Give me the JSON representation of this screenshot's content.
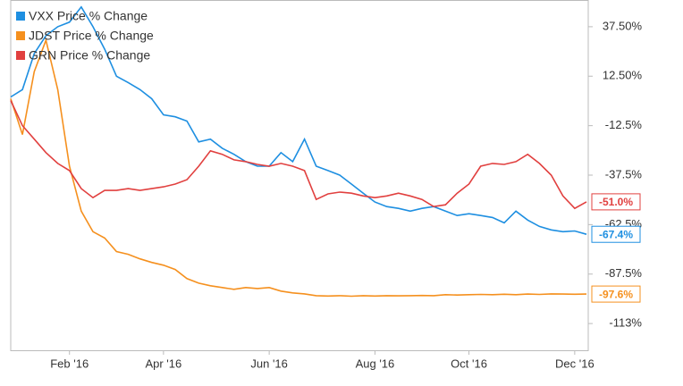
{
  "chart_data": {
    "type": "line",
    "categories": [
      null,
      null,
      null,
      null,
      null,
      "Feb '16",
      null,
      null,
      null,
      null,
      null,
      null,
      null,
      "Apr '16",
      null,
      null,
      null,
      null,
      null,
      null,
      null,
      null,
      "Jun '16",
      null,
      null,
      null,
      null,
      null,
      null,
      null,
      null,
      "Aug '16",
      null,
      null,
      null,
      null,
      null,
      null,
      null,
      "Oct '16",
      null,
      null,
      null,
      null,
      null,
      null,
      null,
      null,
      "Dec '16",
      null
    ],
    "series": [
      {
        "name": "VXX Price % Change",
        "color": "#1e8fe1",
        "values": [
          2.0,
          5.7,
          23.9,
          33,
          37.5,
          39.8,
          47.5,
          37.5,
          26.1,
          12.5,
          9.3,
          5.7,
          1.1,
          -7.0,
          -8,
          -10.2,
          -20.7,
          -19.3,
          -23.9,
          -27,
          -30.7,
          -33,
          -33,
          -26.1,
          -30.7,
          -19.3,
          -33,
          -35.2,
          -37.5,
          -42,
          -46.6,
          -51.1,
          -53.4,
          -54.3,
          -55.7,
          -54.3,
          -53.4,
          -55.7,
          -57.9,
          -57,
          -57.9,
          -58.9,
          -61.6,
          -55.7,
          -60.2,
          -63.4,
          -65.2,
          -66.1,
          -65.7,
          -67.4
        ],
        "value_labels": [
          null,
          null,
          null,
          null,
          null,
          null,
          null,
          null,
          null,
          null,
          null,
          null,
          null,
          null,
          null,
          null,
          null,
          null,
          null,
          null,
          null,
          null,
          null,
          null,
          null,
          null,
          null,
          null,
          null,
          null,
          null,
          null,
          null,
          null,
          null,
          null,
          null,
          null,
          null,
          null,
          null,
          null,
          null,
          null,
          null,
          null,
          null,
          null,
          null,
          "-67.4%"
        ]
      },
      {
        "name": "JDST Price % Change",
        "color": "#f5901e",
        "values": [
          1.1,
          -17,
          14.8,
          30.7,
          5.7,
          -33,
          -55.7,
          -66.1,
          -69.3,
          -76.1,
          -77.5,
          -79.8,
          -81.6,
          -83,
          -85.2,
          -89.8,
          -92.1,
          -93.4,
          -94.3,
          -95.2,
          -94.3,
          -94.8,
          -94.3,
          -96.1,
          -97,
          -97.5,
          -98.4,
          -98.6,
          -98.4,
          -98.7,
          -98.4,
          -98.6,
          -98.4,
          -98.5,
          -98.4,
          -98.3,
          -98.4,
          -97.9,
          -98.1,
          -97.9,
          -97.8,
          -97.9,
          -97.7,
          -97.9,
          -97.6,
          -97.8,
          -97.5,
          -97.6,
          -97.7,
          -97.6
        ],
        "value_labels": [
          null,
          null,
          null,
          null,
          null,
          null,
          null,
          null,
          null,
          null,
          null,
          null,
          null,
          null,
          null,
          null,
          null,
          null,
          null,
          null,
          null,
          null,
          null,
          null,
          null,
          null,
          null,
          null,
          null,
          null,
          null,
          null,
          null,
          null,
          null,
          null,
          null,
          null,
          null,
          null,
          null,
          null,
          null,
          null,
          null,
          null,
          null,
          null,
          null,
          "-97.6%"
        ]
      },
      {
        "name": "GRN Price % Change",
        "color": "#e1403f",
        "values": [
          0.2,
          -12.5,
          -19.3,
          -26.1,
          -31.6,
          -35.2,
          -44.3,
          -48.9,
          -45.2,
          -45.2,
          -44.3,
          -45.2,
          -44.3,
          -43.4,
          -42,
          -39.8,
          -33,
          -25.2,
          -27,
          -29.8,
          -30.7,
          -32.1,
          -33,
          -31.6,
          -33,
          -35.2,
          -49.8,
          -47,
          -46.1,
          -46.6,
          -48,
          -48.9,
          -48,
          -46.6,
          -48,
          -49.8,
          -53.4,
          -52.5,
          -46.6,
          -42,
          -33,
          -31.6,
          -32.1,
          -30.7,
          -27,
          -31.6,
          -37.5,
          -48,
          -54.3,
          -51.0
        ],
        "value_labels": [
          null,
          null,
          null,
          null,
          null,
          null,
          null,
          null,
          null,
          null,
          null,
          null,
          null,
          null,
          null,
          null,
          null,
          null,
          null,
          null,
          null,
          null,
          null,
          null,
          null,
          null,
          null,
          null,
          null,
          null,
          null,
          null,
          null,
          null,
          null,
          null,
          null,
          null,
          null,
          null,
          null,
          null,
          null,
          null,
          null,
          null,
          null,
          null,
          null,
          "-51.0%"
        ]
      }
    ],
    "ylim": [
      -126,
      51
    ],
    "yticks": [
      {
        "value": 37.5,
        "label": "37.50%"
      },
      {
        "value": 12.5,
        "label": "12.50%"
      },
      {
        "value": -12.5,
        "label": "-12.5%"
      },
      {
        "value": -37.5,
        "label": "-37.5%"
      },
      {
        "value": -62.5,
        "label": "-62.5%"
      },
      {
        "value": -87.5,
        "label": "-87.5%"
      },
      {
        "value": -112.5,
        "label": "-113%"
      }
    ],
    "grid": false,
    "legend": "upper left"
  }
}
